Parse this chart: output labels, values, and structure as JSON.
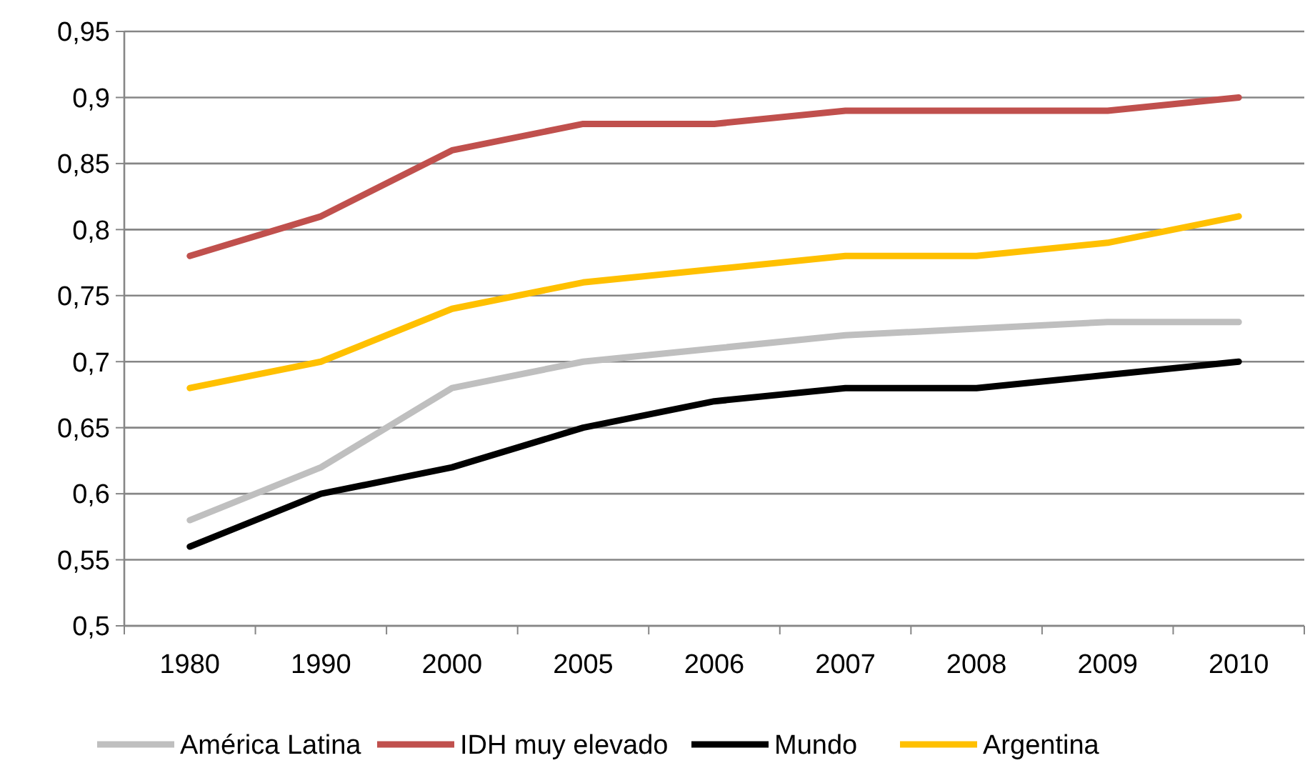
{
  "chart_data": {
    "type": "line",
    "categories": [
      "1980",
      "1990",
      "2000",
      "2005",
      "2006",
      "2007",
      "2008",
      "2009",
      "2010"
    ],
    "series": [
      {
        "name": "América Latina",
        "color": "#bfbfbf",
        "values": [
          0.58,
          0.62,
          0.68,
          0.7,
          0.71,
          0.72,
          0.725,
          0.73,
          0.73
        ]
      },
      {
        "name": "IDH muy elevado",
        "color": "#c0504d",
        "values": [
          0.78,
          0.81,
          0.86,
          0.88,
          0.88,
          0.89,
          0.89,
          0.89,
          0.9
        ]
      },
      {
        "name": "Mundo",
        "color": "#000000",
        "values": [
          0.56,
          0.6,
          0.62,
          0.65,
          0.67,
          0.68,
          0.68,
          0.69,
          0.7
        ]
      },
      {
        "name": "Argentina",
        "color": "#ffc000",
        "values": [
          0.68,
          0.7,
          0.74,
          0.76,
          0.77,
          0.78,
          0.78,
          0.79,
          0.81
        ]
      }
    ],
    "ylim": [
      0.5,
      0.95
    ],
    "yticks": [
      {
        "value": 0.5,
        "label": "0,5"
      },
      {
        "value": 0.55,
        "label": "0,55"
      },
      {
        "value": 0.6,
        "label": "0,6"
      },
      {
        "value": 0.65,
        "label": "0,65"
      },
      {
        "value": 0.7,
        "label": "0,7"
      },
      {
        "value": 0.75,
        "label": "0,75"
      },
      {
        "value": 0.8,
        "label": "0,8"
      },
      {
        "value": 0.85,
        "label": "0,85"
      },
      {
        "value": 0.9,
        "label": "0,9"
      },
      {
        "value": 0.95,
        "label": "0,95"
      }
    ],
    "grid": "y",
    "legend": "bottom",
    "marker": "none",
    "line_style": "solid"
  }
}
